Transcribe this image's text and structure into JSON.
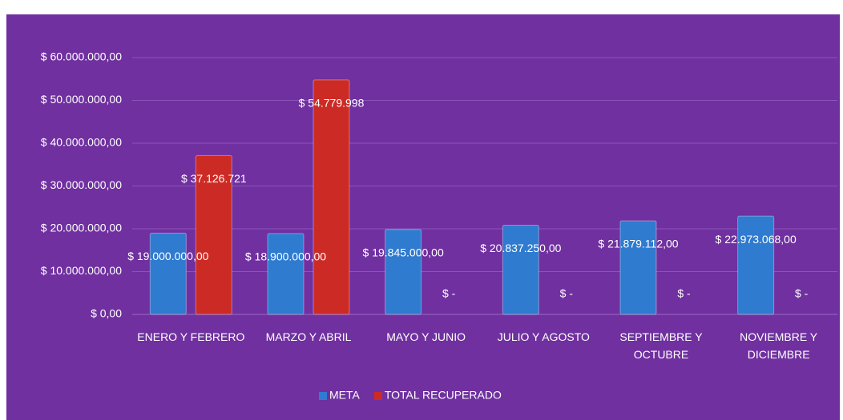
{
  "chart_data": {
    "type": "bar",
    "categories": [
      "ENERO Y FEBRERO",
      "MARZO Y ABRIL",
      "MAYO Y JUNIO",
      "JULIO Y AGOSTO",
      "SEPTIEMBRE Y OCTUBRE",
      "NOVIEMBRE Y DICIEMBRE"
    ],
    "series": [
      {
        "name": "META",
        "color": "#2f7bd0",
        "values": [
          19000000,
          18900000,
          19845000,
          20837250,
          21879112,
          22973068
        ],
        "value_labels": [
          "$ 19.000.000,00",
          "$ 18.900.000,00",
          "$ 19.845.000,00",
          "$ 20.837.250,00",
          "$ 21.879.112,00",
          "$ 22.973.068,00"
        ]
      },
      {
        "name": "TOTAL RECUPERADO",
        "color": "#cc2b25",
        "values": [
          37126721,
          54779998,
          0,
          0,
          0,
          0
        ],
        "value_labels": [
          "$ 37.126.721",
          "$ 54.779.998",
          "$ -",
          "$ -",
          "$ -",
          "$ -"
        ]
      }
    ],
    "ylim": [
      0,
      60000000
    ],
    "yticks": [
      {
        "value": 0,
        "label": "$ 0,00"
      },
      {
        "value": 10000000,
        "label": "$ 10.000.000,00"
      },
      {
        "value": 20000000,
        "label": "$ 20.000.000,00"
      },
      {
        "value": 30000000,
        "label": "$ 30.000.000,00"
      },
      {
        "value": 40000000,
        "label": "$ 40.000.000,00"
      },
      {
        "value": 50000000,
        "label": "$ 50.000.000,00"
      },
      {
        "value": 60000000,
        "label": "$ 60.000.000,00"
      }
    ],
    "grid": true,
    "legend": "bottom",
    "background": "#7030a0"
  }
}
